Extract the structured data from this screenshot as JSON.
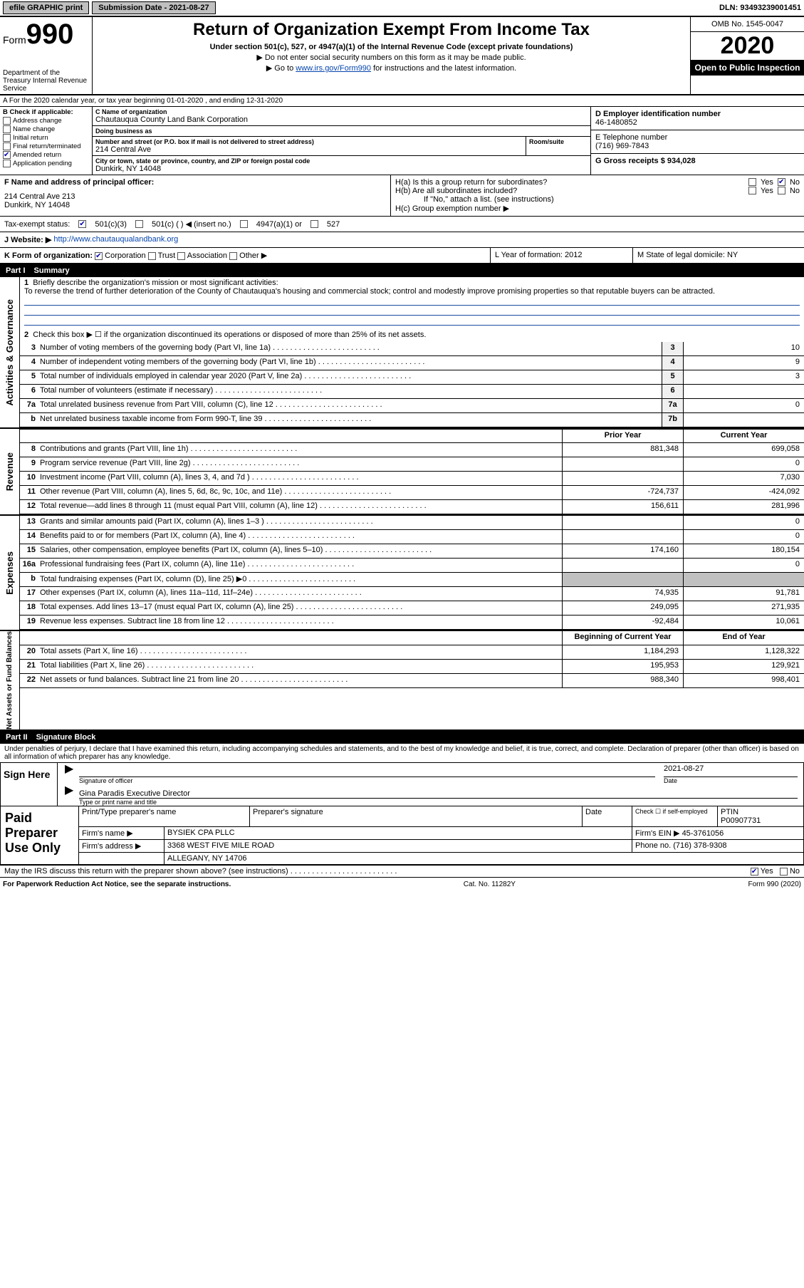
{
  "topbar": {
    "efile": "efile GRAPHIC print",
    "submission_label": "Submission Date - 2021-08-27",
    "dln": "DLN: 93493239001451"
  },
  "header": {
    "form_prefix": "Form",
    "form_number": "990",
    "dept": "Department of the Treasury\nInternal Revenue Service",
    "title": "Return of Organization Exempt From Income Tax",
    "sub1": "Under section 501(c), 527, or 4947(a)(1) of the Internal Revenue Code (except private foundations)",
    "sub2": "▶ Do not enter social security numbers on this form as it may be made public.",
    "sub3_pre": "▶ Go to ",
    "sub3_link": "www.irs.gov/Form990",
    "sub3_post": " for instructions and the latest information.",
    "omb": "OMB No. 1545-0047",
    "year": "2020",
    "open": "Open to Public Inspection"
  },
  "lineA": "A For the 2020 calendar year, or tax year beginning 01-01-2020  , and ending 12-31-2020",
  "blockB": {
    "label": "B Check if applicable:",
    "items": [
      "Address change",
      "Name change",
      "Initial return",
      "Final return/terminated",
      "Amended return",
      "Application pending"
    ],
    "checked": [
      false,
      false,
      false,
      false,
      true,
      false
    ]
  },
  "blockC": {
    "name_label": "C Name of organization",
    "name": "Chautauqua County Land Bank Corporation",
    "dba_label": "Doing business as",
    "dba": "",
    "addr_label": "Number and street (or P.O. box if mail is not delivered to street address)",
    "addr": "214 Central Ave",
    "room_label": "Room/suite",
    "city_label": "City or town, state or province, country, and ZIP or foreign postal code",
    "city": "Dunkirk, NY  14048"
  },
  "blockD": {
    "label": "D Employer identification number",
    "val": "46-1480852"
  },
  "blockE": {
    "label": "E Telephone number",
    "val": "(716) 969-7843"
  },
  "blockG": {
    "label": "G Gross receipts $ 934,028"
  },
  "blockF": {
    "label": "F  Name and address of principal officer:",
    "addr1": "214 Central Ave 213",
    "addr2": "Dunkirk, NY  14048"
  },
  "blockH": {
    "a": "H(a)  Is this a group return for subordinates?",
    "b": "H(b)  Are all subordinates included?",
    "note": "If \"No,\" attach a list. (see instructions)",
    "c": "H(c)  Group exemption number ▶"
  },
  "taxStatus": {
    "label": "Tax-exempt status:",
    "o1": "501(c)(3)",
    "o2": "501(c) (  ) ◀ (insert no.)",
    "o3": "4947(a)(1) or",
    "o4": "527"
  },
  "lineJ": {
    "label": "J   Website: ▶",
    "url": "http://www.chautauqualandbank.org"
  },
  "lineK": {
    "label": "K Form of organization:",
    "opts": [
      "Corporation",
      "Trust",
      "Association",
      "Other ▶"
    ]
  },
  "lineL": "L Year of formation: 2012",
  "lineM": "M State of legal domicile: NY",
  "part1": {
    "title": "Part I",
    "name": "Summary",
    "side_ag": "Activities & Governance",
    "side_rev": "Revenue",
    "side_exp": "Expenses",
    "side_na": "Net Assets or Fund Balances",
    "q1": "Briefly describe the organization's mission or most significant activities:",
    "mission": "To reverse the trend of further deterioration of the County of Chautauqua's housing and commercial stock; control and modestly improve promising properties so that reputable buyers can be attracted.",
    "q2": "Check this box ▶ ☐  if the organization discontinued its operations or disposed of more than 25% of its net assets.",
    "lines_ag": [
      {
        "n": "3",
        "t": "Number of voting members of the governing body (Part VI, line 1a)",
        "box": "3",
        "v": "10"
      },
      {
        "n": "4",
        "t": "Number of independent voting members of the governing body (Part VI, line 1b)",
        "box": "4",
        "v": "9"
      },
      {
        "n": "5",
        "t": "Total number of individuals employed in calendar year 2020 (Part V, line 2a)",
        "box": "5",
        "v": "3"
      },
      {
        "n": "6",
        "t": "Total number of volunteers (estimate if necessary)",
        "box": "6",
        "v": ""
      },
      {
        "n": "7a",
        "t": "Total unrelated business revenue from Part VIII, column (C), line 12",
        "box": "7a",
        "v": "0"
      },
      {
        "n": "b",
        "t": "Net unrelated business taxable income from Form 990-T, line 39",
        "box": "7b",
        "v": ""
      }
    ],
    "head_prior": "Prior Year",
    "head_curr": "Current Year",
    "lines_rev": [
      {
        "n": "8",
        "t": "Contributions and grants (Part VIII, line 1h)",
        "p": "881,348",
        "c": "699,058"
      },
      {
        "n": "9",
        "t": "Program service revenue (Part VIII, line 2g)",
        "p": "",
        "c": "0"
      },
      {
        "n": "10",
        "t": "Investment income (Part VIII, column (A), lines 3, 4, and 7d )",
        "p": "",
        "c": "7,030"
      },
      {
        "n": "11",
        "t": "Other revenue (Part VIII, column (A), lines 5, 6d, 8c, 9c, 10c, and 11e)",
        "p": "-724,737",
        "c": "-424,092"
      },
      {
        "n": "12",
        "t": "Total revenue—add lines 8 through 11 (must equal Part VIII, column (A), line 12)",
        "p": "156,611",
        "c": "281,996"
      }
    ],
    "lines_exp": [
      {
        "n": "13",
        "t": "Grants and similar amounts paid (Part IX, column (A), lines 1–3 )",
        "p": "",
        "c": "0"
      },
      {
        "n": "14",
        "t": "Benefits paid to or for members (Part IX, column (A), line 4)",
        "p": "",
        "c": "0"
      },
      {
        "n": "15",
        "t": "Salaries, other compensation, employee benefits (Part IX, column (A), lines 5–10)",
        "p": "174,160",
        "c": "180,154"
      },
      {
        "n": "16a",
        "t": "Professional fundraising fees (Part IX, column (A), line 11e)",
        "p": "",
        "c": "0"
      },
      {
        "n": "b",
        "t": "Total fundraising expenses (Part IX, column (D), line 25) ▶0",
        "p": "SHADE",
        "c": "SHADE"
      },
      {
        "n": "17",
        "t": "Other expenses (Part IX, column (A), lines 11a–11d, 11f–24e)",
        "p": "74,935",
        "c": "91,781"
      },
      {
        "n": "18",
        "t": "Total expenses. Add lines 13–17 (must equal Part IX, column (A), line 25)",
        "p": "249,095",
        "c": "271,935"
      },
      {
        "n": "19",
        "t": "Revenue less expenses. Subtract line 18 from line 12",
        "p": "-92,484",
        "c": "10,061"
      }
    ],
    "head_begin": "Beginning of Current Year",
    "head_end": "End of Year",
    "lines_na": [
      {
        "n": "20",
        "t": "Total assets (Part X, line 16)",
        "p": "1,184,293",
        "c": "1,128,322"
      },
      {
        "n": "21",
        "t": "Total liabilities (Part X, line 26)",
        "p": "195,953",
        "c": "129,921"
      },
      {
        "n": "22",
        "t": "Net assets or fund balances. Subtract line 21 from line 20",
        "p": "988,340",
        "c": "998,401"
      }
    ]
  },
  "part2": {
    "title": "Part II",
    "name": "Signature Block",
    "decl": "Under penalties of perjury, I declare that I have examined this return, including accompanying schedules and statements, and to the best of my knowledge and belief, it is true, correct, and complete. Declaration of preparer (other than officer) is based on all information of which preparer has any knowledge.",
    "sign_here": "Sign Here",
    "sig_officer": "Signature of officer",
    "sig_date": "2021-08-27",
    "date_label": "Date",
    "officer_name": "Gina Paradis  Executive Director",
    "officer_caption": "Type or print name and title",
    "paid_label": "Paid Preparer Use Only",
    "hdr_prep_name": "Print/Type preparer's name",
    "hdr_prep_sig": "Preparer's signature",
    "hdr_date": "Date",
    "hdr_check": "Check ☐ if self-employed",
    "hdr_ptin": "PTIN",
    "ptin": "P00907731",
    "firm_name_label": "Firm's name    ▶",
    "firm_name": "BYSIEK CPA PLLC",
    "firm_ein_label": "Firm's EIN ▶",
    "firm_ein": "45-3761056",
    "firm_addr_label": "Firm's address ▶",
    "firm_addr1": "3368 WEST FIVE MILE ROAD",
    "firm_addr2": "ALLEGANY, NY  14706",
    "firm_phone_label": "Phone no.",
    "firm_phone": "(716) 378-9308",
    "discuss_q": "May the IRS discuss this return with the preparer shown above? (see instructions)",
    "yes": "Yes",
    "no": "No"
  },
  "footer": {
    "left": "For Paperwork Reduction Act Notice, see the separate instructions.",
    "mid": "Cat. No. 11282Y",
    "right": "Form 990 (2020)"
  }
}
